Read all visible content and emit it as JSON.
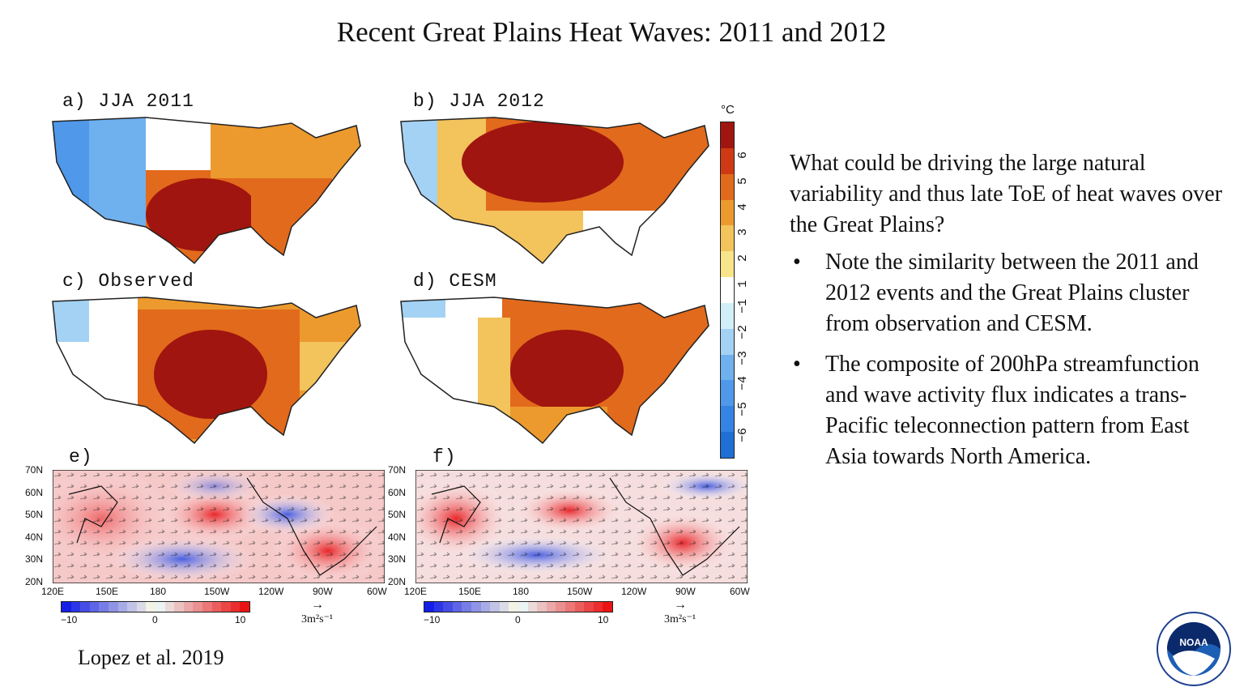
{
  "slide": {
    "title": "Recent Great Plains Heat Waves: 2011 and 2012",
    "citation": "Lopez et al. 2019"
  },
  "panels": {
    "a": "a) JJA 2011",
    "b": "b) JJA 2012",
    "c": "c) Observed",
    "d": "d) CESM",
    "e": "e)",
    "f": "f)"
  },
  "temperature_colorbar": {
    "unit": "°C",
    "ticks": [
      "−6",
      "−5",
      "−4",
      "−3",
      "−2",
      "−1",
      "1",
      "2",
      "3",
      "4",
      "5",
      "6"
    ],
    "colors": [
      "#1f6fd6",
      "#3583e3",
      "#4f98ea",
      "#6fb0ef",
      "#a3d2f4",
      "#d2eef8",
      "#ffffff",
      "#f8e58a",
      "#f3c35c",
      "#ec9a2e",
      "#e26a1c",
      "#cf3a14",
      "#a0150f"
    ]
  },
  "streamfunction_panels": {
    "lat_labels": [
      "70N",
      "60N",
      "50N",
      "40N",
      "30N",
      "20N"
    ],
    "lon_labels": [
      "120E",
      "150E",
      "180",
      "150W",
      "120W",
      "90W",
      "60W"
    ],
    "cbar_labels": [
      "−10",
      "0",
      "10"
    ],
    "vector_scale": "3m²s⁻¹",
    "arrow": "→"
  },
  "right_text": {
    "question": "What could be driving the large natural variability and thus late ToE of heat waves over the Great Plains?",
    "bullets": [
      "Note the similarity between the 2011 and 2012 events and the Great Plains cluster from observation and CESM.",
      "The composite of 200hPa streamfunction and wave activity flux indicates a trans-Pacific teleconnection pattern from East Asia towards North America."
    ]
  },
  "logo": {
    "text": "NOAA"
  }
}
